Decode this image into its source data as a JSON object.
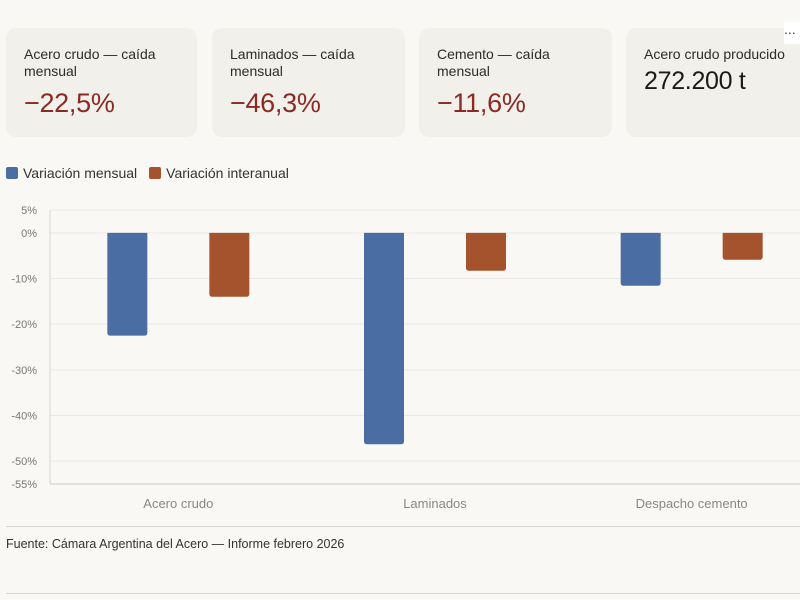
{
  "cards": [
    {
      "label": "Acero crudo — caída mensual",
      "value": "−22,5%"
    },
    {
      "label": "Laminados — caída mensual",
      "value": "−46,3%"
    },
    {
      "label": "Cemento — caída mensual",
      "value": "−11,6%"
    },
    {
      "label": "Acero crudo producido",
      "value": "272.200 t"
    }
  ],
  "more_label": "...",
  "source": "Fuente: Cámara Argentina del Acero — Informe febrero 2026",
  "colors": {
    "mensual": "#4a6da3",
    "interanual": "#a4532c",
    "negative": "#8b2a24"
  },
  "chart_data": {
    "type": "bar",
    "categories": [
      "Acero crudo",
      "Laminados",
      "Despacho cemento"
    ],
    "series": [
      {
        "name": "Variación mensual",
        "values": [
          -22.5,
          -46.3,
          -11.6
        ]
      },
      {
        "name": "Variación interanual",
        "values": [
          -14.0,
          -8.3,
          -5.9
        ]
      }
    ],
    "ylim": [
      -55,
      5
    ],
    "yticks": [
      5,
      0,
      -10,
      -20,
      -30,
      -40,
      -50,
      -55
    ],
    "ytick_labels": [
      "5%",
      "0%",
      "-10%",
      "-20%",
      "-30%",
      "-40%",
      "-50%",
      "-55%"
    ],
    "legend": "top-left",
    "grid": true,
    "xlabel": "",
    "ylabel": ""
  }
}
